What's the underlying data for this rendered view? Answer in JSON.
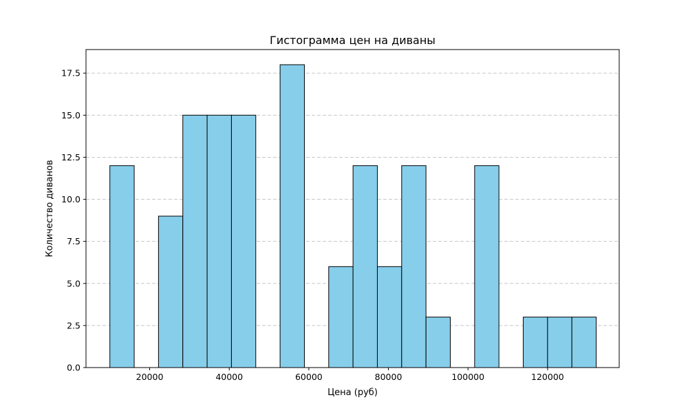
{
  "chart_data": {
    "type": "bar",
    "title": "Гистограмма цен на диваны",
    "xlabel": "Цена (руб)",
    "ylabel": "Количество диванов",
    "xlim": [
      4000,
      138000
    ],
    "ylim": [
      0,
      18.9
    ],
    "bins": {
      "start": 10000,
      "width": 6111,
      "counts": [
        12,
        0,
        9,
        15,
        15,
        15,
        0,
        18,
        0,
        6,
        12,
        6,
        12,
        3,
        0,
        12,
        0,
        3,
        3,
        3
      ]
    },
    "x_ticks": [
      {
        "value": 20000,
        "label": "20000"
      },
      {
        "value": 40000,
        "label": "40000"
      },
      {
        "value": 60000,
        "label": "60000"
      },
      {
        "value": 80000,
        "label": "80000"
      },
      {
        "value": 100000,
        "label": "100000"
      },
      {
        "value": 120000,
        "label": "120000"
      }
    ],
    "y_ticks": [
      {
        "value": 0,
        "label": "0.0"
      },
      {
        "value": 2.5,
        "label": "2.5"
      },
      {
        "value": 5,
        "label": "5.0"
      },
      {
        "value": 7.5,
        "label": "7.5"
      },
      {
        "value": 10,
        "label": "10.0"
      },
      {
        "value": 12.5,
        "label": "12.5"
      },
      {
        "value": 15,
        "label": "15.0"
      },
      {
        "value": 17.5,
        "label": "17.5"
      }
    ],
    "grid": {
      "y": true,
      "x": false,
      "style": "dashed"
    },
    "colors": {
      "bar_fill": "#87ceeb",
      "bar_edge": "#000000",
      "grid": "#c8c8c8",
      "axes": "#000000"
    }
  }
}
